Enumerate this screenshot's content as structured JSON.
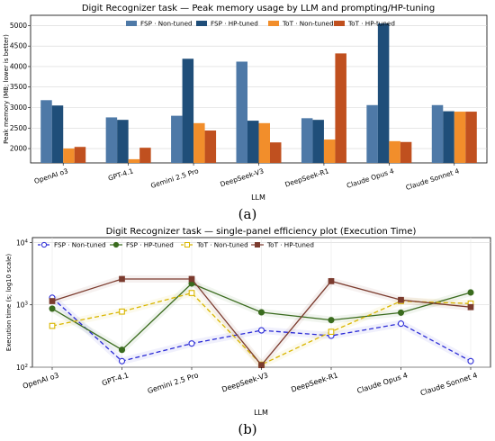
{
  "captions": {
    "a": "(a)",
    "b": "(b)"
  },
  "chart_data": [
    {
      "type": "bar",
      "title": "Digit Recognizer task — Peak memory usage by LLM and prompting/HP-tuning",
      "xlabel": "LLM",
      "ylabel": "Peak memory (MB; lower is better)",
      "categories": [
        "OpenAI o3",
        "GPT-4.1",
        "Gemini 2.5 Pro",
        "DeepSeek-V3",
        "DeepSeek-R1",
        "Claude Opus 4",
        "Claude Sonnet 4"
      ],
      "ylim": [
        1650,
        5250
      ],
      "yticks": [
        2000,
        2500,
        3000,
        3500,
        4000,
        4500,
        5000
      ],
      "grid": true,
      "legend_position": "top-center",
      "series": [
        {
          "name": "FSP · Non-tuned",
          "color": "#4e79a7",
          "values": [
            3180,
            2760,
            2800,
            4120,
            2740,
            3060,
            3060
          ]
        },
        {
          "name": "FSP · HP-tuned",
          "color": "#1f4e79",
          "values": [
            3050,
            2700,
            4190,
            2680,
            2700,
            5050,
            2910
          ]
        },
        {
          "name": "ToT · Non-tuned",
          "color": "#f28e2b",
          "values": [
            2000,
            1740,
            2620,
            2620,
            2220,
            2180,
            2900
          ]
        },
        {
          "name": "ToT · HP-tuned",
          "color": "#c0501f",
          "values": [
            2040,
            2020,
            2440,
            2150,
            4320,
            2160,
            2900
          ]
        }
      ]
    },
    {
      "type": "line",
      "title": "Digit Recognizer task — single-panel efficiency plot (Execution Time)",
      "xlabel": "LLM",
      "ylabel": "Execution time (s; log10 scale)",
      "yscale": "log",
      "ylim": [
        100,
        12000
      ],
      "yticks": [
        {
          "value": 100,
          "base": "10",
          "exp": "2"
        },
        {
          "value": 1000,
          "base": "10",
          "exp": "3"
        },
        {
          "value": 10000,
          "base": "10",
          "exp": "4"
        }
      ],
      "categories": [
        "OpenAI o3",
        "GPT-4.1",
        "Gemini 2.5 Pro",
        "DeepSeek-V3",
        "DeepSeek-R1",
        "Claude Opus 4",
        "Claude Sonnet 4"
      ],
      "grid": true,
      "legend_position": "top-left",
      "series": [
        {
          "name": "FSP · Non-tuned",
          "color": "#2b2bd6",
          "dash": "5,3",
          "marker": "circle-open",
          "values": [
            1300,
            125,
            240,
            390,
            320,
            500,
            125
          ]
        },
        {
          "name": "FSP · HP-tuned",
          "color": "#3a6b1e",
          "dash": "",
          "marker": "circle-filled",
          "values": [
            870,
            190,
            2200,
            760,
            570,
            750,
            1580
          ]
        },
        {
          "name": "ToT · Non-tuned",
          "color": "#d9b600",
          "dash": "5,3",
          "marker": "square-open",
          "values": [
            460,
            780,
            1550,
            110,
            370,
            1150,
            1050
          ]
        },
        {
          "name": "ToT · HP-tuned",
          "color": "#7b3b2e",
          "dash": "",
          "marker": "square-filled",
          "values": [
            1150,
            2600,
            2600,
            108,
            2400,
            1200,
            920
          ]
        }
      ]
    }
  ]
}
